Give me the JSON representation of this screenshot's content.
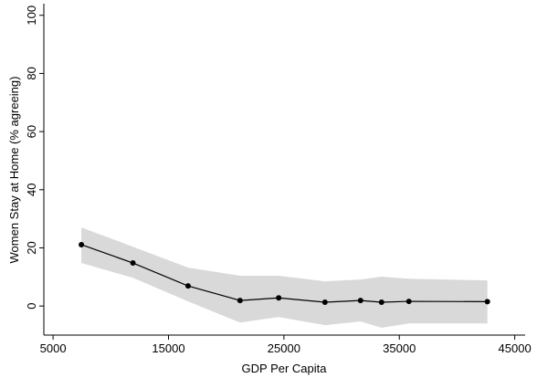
{
  "chart_data": {
    "type": "line",
    "x_label": "GDP Per Capita",
    "y_label": "Women Stay at Home (% agreeing)",
    "x": [
      7450,
      11920,
      16700,
      21200,
      24550,
      28560,
      31640,
      33460,
      35830,
      42630
    ],
    "values": [
      21.1,
      14.8,
      6.9,
      1.9,
      2.8,
      1.3,
      1.9,
      1.3,
      1.6,
      1.5
    ],
    "lower": [
      14.8,
      9.7,
      1.6,
      -5.7,
      -3.8,
      -6.6,
      -5.3,
      -7.5,
      -6,
      -6
    ],
    "upper": [
      27,
      20.4,
      13.2,
      10.4,
      10.4,
      8.5,
      9.1,
      10.1,
      9.4,
      8.8
    ],
    "color": "#000000",
    "band_color": "#d9d9d9",
    "xlim": [
      4200,
      45900
    ],
    "xticks": [
      5000,
      15000,
      25000,
      35000,
      45000
    ],
    "ylim": [
      -10,
      104
    ],
    "yticks": [
      0,
      20,
      40,
      60,
      80,
      100
    ],
    "grid": false
  }
}
